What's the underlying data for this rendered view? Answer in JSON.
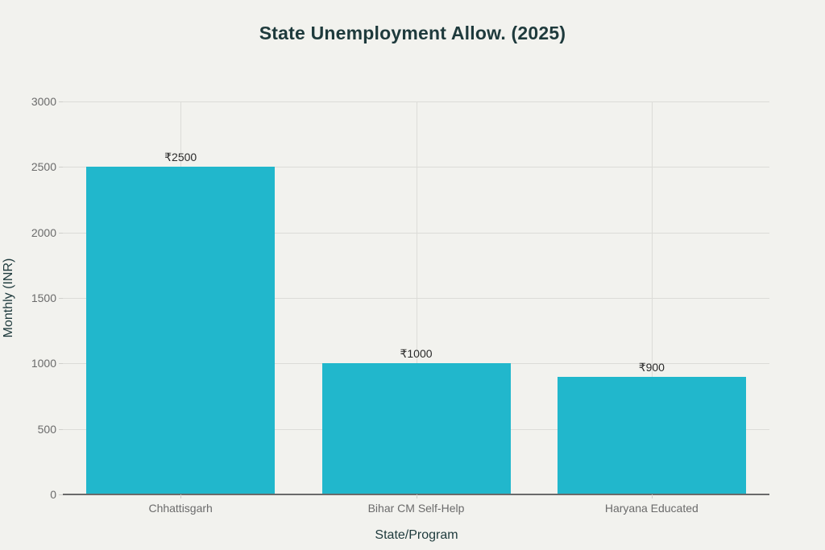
{
  "chart_data": {
    "type": "bar",
    "title": "State Unemployment Allow. (2025)",
    "xlabel": "State/Program",
    "ylabel": "Monthly (INR)",
    "categories": [
      "Chhattisgarh",
      "Bihar CM Self-Help",
      "Haryana Educated"
    ],
    "values": [
      2500,
      1000,
      900
    ],
    "data_labels": [
      "₹2500",
      "₹1000",
      "₹900"
    ],
    "ylim": [
      0,
      3000
    ],
    "yticks": [
      "0",
      "500",
      "1000",
      "1500",
      "2000",
      "2500",
      "3000"
    ],
    "grid": true,
    "legend": null,
    "bar_color": "#21b7cc",
    "background_color": "#f2f2ee"
  }
}
